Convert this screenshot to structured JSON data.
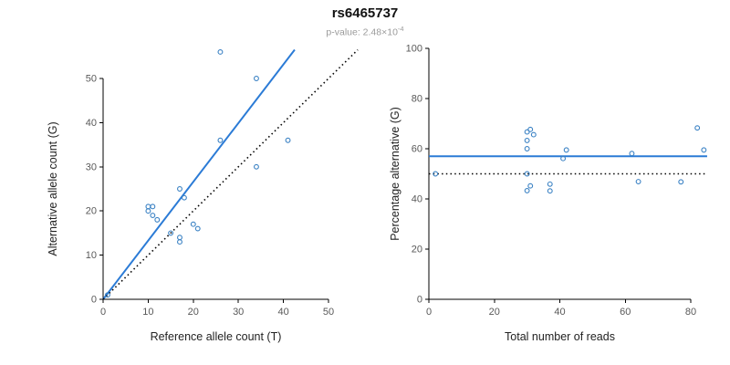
{
  "header": {
    "title": "rs6465737",
    "pvalue_prefix": "p-value: 2.48×10",
    "pvalue_exponent": "-4"
  },
  "colors": {
    "accent_line": "#2b7bd6",
    "point": "#3b82c4",
    "dotted_line": "#000000",
    "axis": "#000000"
  },
  "chart_data": [
    {
      "id": "left",
      "type": "scatter",
      "title": "",
      "xlabel": "Reference allele count (T)",
      "ylabel": "Alternative allele count (G)",
      "xlim": [
        0,
        50
      ],
      "ylim": [
        0,
        50
      ],
      "xticks": [
        0,
        10,
        20,
        30,
        40,
        50
      ],
      "yticks": [
        0,
        10,
        20,
        30,
        40,
        50
      ],
      "grid": false,
      "points": [
        [
          1,
          1
        ],
        [
          10,
          20
        ],
        [
          10,
          21
        ],
        [
          11,
          21
        ],
        [
          11,
          19
        ],
        [
          12,
          18
        ],
        [
          15,
          15
        ],
        [
          17,
          14
        ],
        [
          17,
          13
        ],
        [
          17,
          25
        ],
        [
          18,
          23
        ],
        [
          20,
          17
        ],
        [
          21,
          16
        ],
        [
          26,
          36
        ],
        [
          26,
          56
        ],
        [
          34,
          30
        ],
        [
          34,
          50
        ],
        [
          41,
          36
        ]
      ],
      "lines": [
        {
          "name": "fit-line",
          "style": "solid",
          "color": "#2b7bd6",
          "width": 2,
          "from": [
            0,
            0
          ],
          "to": [
            42.5,
            56.5
          ]
        },
        {
          "name": "identity-line",
          "style": "dotted",
          "color": "#000000",
          "width": 1.6,
          "from": [
            0,
            0
          ],
          "to": [
            56.5,
            56.5
          ]
        }
      ]
    },
    {
      "id": "right",
      "type": "scatter",
      "title": "",
      "xlabel": "Total number of reads",
      "ylabel": "Percentage alternative (G)",
      "xlim": [
        0,
        80
      ],
      "ylim": [
        0,
        100
      ],
      "xticks": [
        0,
        20,
        40,
        60,
        80
      ],
      "yticks": [
        0,
        20,
        40,
        60,
        80,
        100
      ],
      "grid": false,
      "points": [
        [
          2,
          50
        ],
        [
          30,
          66.7
        ],
        [
          31,
          67.7
        ],
        [
          32,
          65.6
        ],
        [
          30,
          63.3
        ],
        [
          30,
          60
        ],
        [
          30,
          50
        ],
        [
          31,
          45.2
        ],
        [
          30,
          43.3
        ],
        [
          42,
          59.5
        ],
        [
          41,
          56.1
        ],
        [
          37,
          45.9
        ],
        [
          37,
          43.2
        ],
        [
          62,
          58.1
        ],
        [
          82,
          68.3
        ],
        [
          64,
          46.9
        ],
        [
          84,
          59.5
        ],
        [
          77,
          46.8
        ]
      ],
      "lines": [
        {
          "name": "mean-percentage-line",
          "style": "solid",
          "color": "#2b7bd6",
          "width": 2,
          "from": [
            0,
            57
          ],
          "to": [
            85,
            57
          ]
        },
        {
          "name": "fifty-percent-line",
          "style": "dotted",
          "color": "#000000",
          "width": 1.6,
          "from": [
            0,
            50
          ],
          "to": [
            85,
            50
          ]
        }
      ]
    }
  ]
}
